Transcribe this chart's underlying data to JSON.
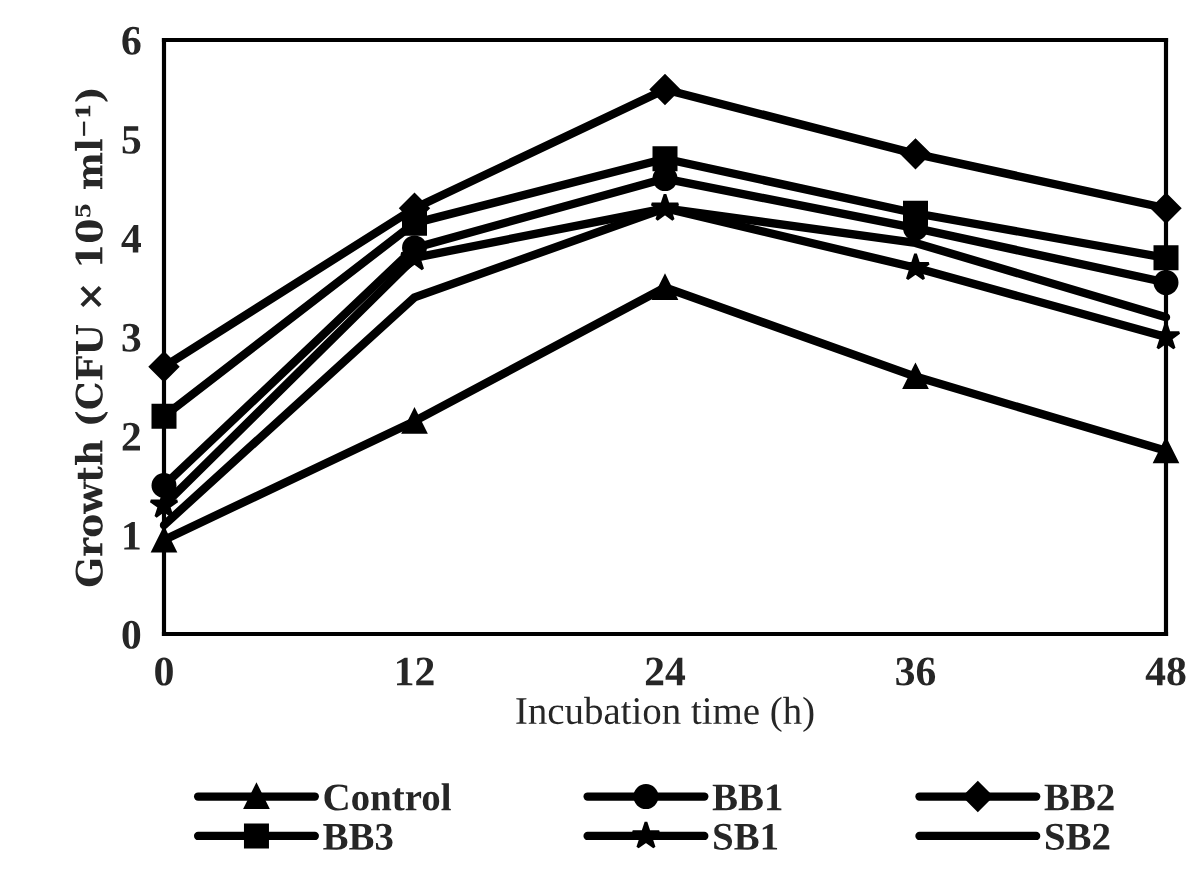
{
  "chart_data": {
    "type": "line",
    "xlabel": "Incubation time (h)",
    "ylabel": "Growth (CFU × 10⁵ ml⁻¹)",
    "x": [
      0,
      12,
      24,
      36,
      48
    ],
    "xlim": [
      0,
      48
    ],
    "xticks": [
      0,
      12,
      24,
      36,
      48
    ],
    "ylim": [
      0,
      6
    ],
    "yticks": [
      0,
      1,
      2,
      3,
      4,
      5,
      6
    ],
    "grid": false,
    "legend": "bottom",
    "line_style": "solid",
    "series": [
      {
        "name": "Control",
        "color": "#000000",
        "marker": "triangle",
        "values": [
          0.95,
          2.15,
          3.5,
          2.6,
          1.85
        ]
      },
      {
        "name": "BB1",
        "color": "#000000",
        "marker": "circle",
        "values": [
          1.5,
          3.9,
          4.6,
          4.1,
          3.55
        ]
      },
      {
        "name": "BB2",
        "color": "#000000",
        "marker": "diamond",
        "values": [
          2.7,
          4.3,
          5.5,
          4.85,
          4.3
        ]
      },
      {
        "name": "BB3",
        "color": "#000000",
        "marker": "square",
        "values": [
          2.2,
          4.15,
          4.8,
          4.25,
          3.8
        ]
      },
      {
        "name": "SB1",
        "color": "#000000",
        "marker": "star",
        "values": [
          1.3,
          3.8,
          4.3,
          3.7,
          3.0
        ]
      },
      {
        "name": "SB2",
        "color": "#000000",
        "marker": "none",
        "values": [
          1.1,
          3.4,
          4.3,
          3.95,
          3.2
        ]
      }
    ]
  }
}
